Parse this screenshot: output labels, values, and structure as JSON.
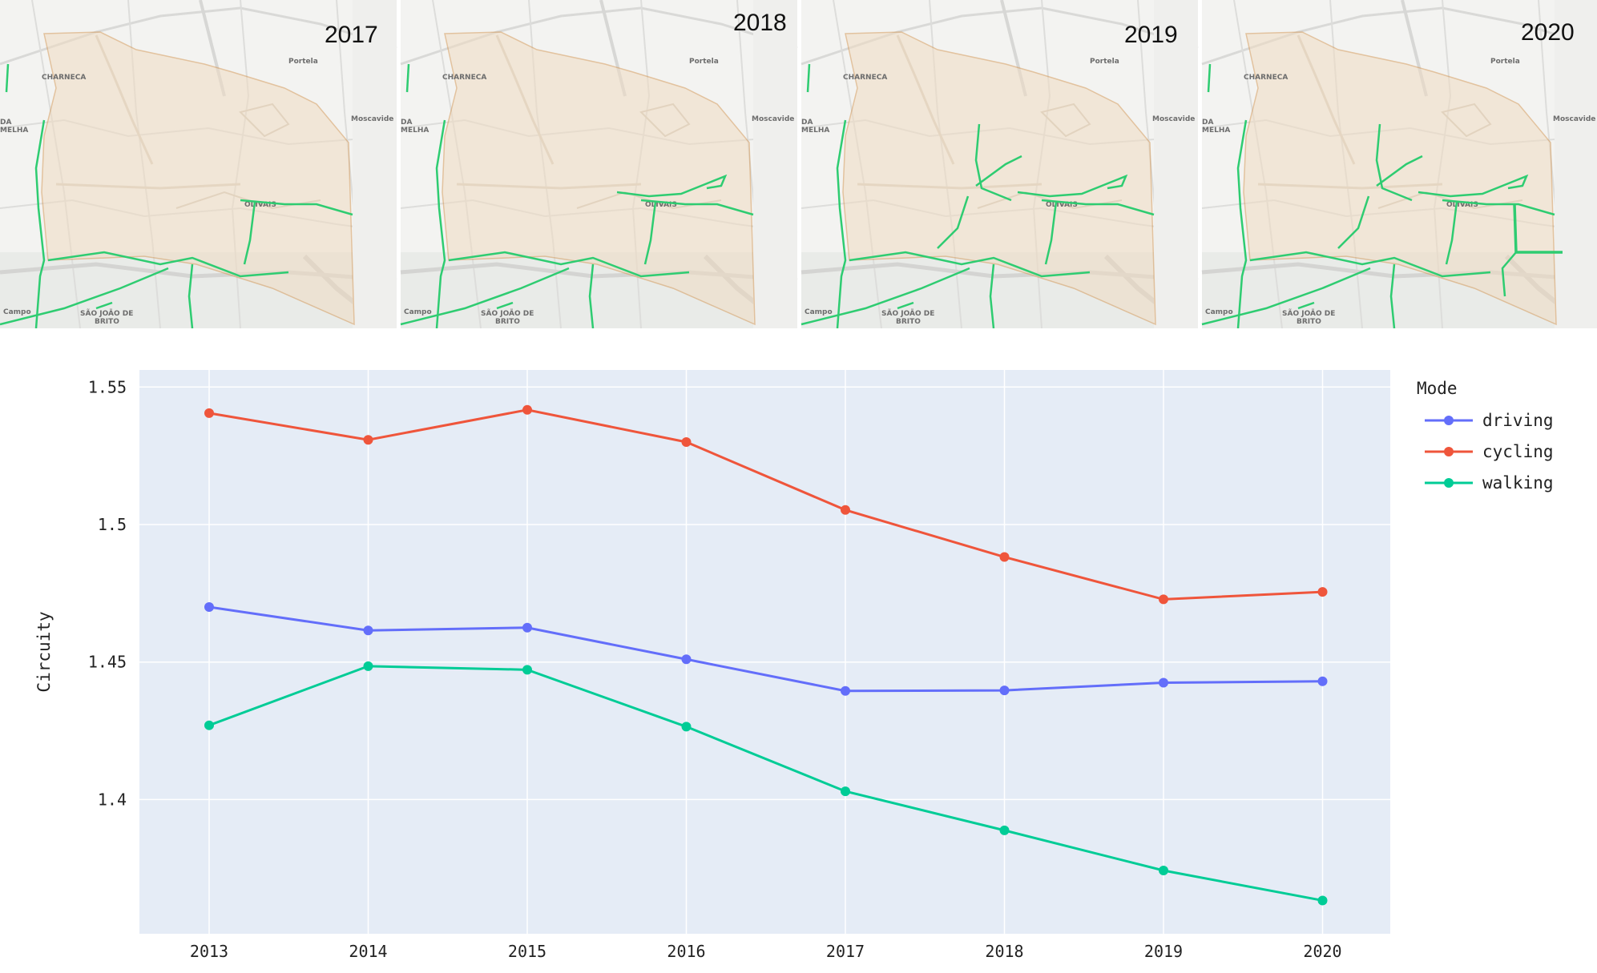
{
  "maps": {
    "years": [
      "2017",
      "2018",
      "2019",
      "2020"
    ],
    "places": [
      "CHARNECA",
      "Portela",
      "Moscavide",
      "OLIVAIS",
      "SÃO JOÃO DE BRITO",
      "DA MELHA",
      "Campo"
    ]
  },
  "chart_data": {
    "type": "line",
    "x": [
      2013,
      2014,
      2015,
      2016,
      2017,
      2018,
      2019,
      2020
    ],
    "series": [
      {
        "name": "driving",
        "color": "#636efa",
        "values": [
          1.47,
          1.4615,
          1.4625,
          1.451,
          1.4395,
          1.4397,
          1.4425,
          1.443
        ]
      },
      {
        "name": "cycling",
        "color": "#ef553b",
        "values": [
          1.5405,
          1.5308,
          1.5417,
          1.53,
          1.5053,
          1.4882,
          1.4728,
          1.4755
        ]
      },
      {
        "name": "walking",
        "color": "#00cc96",
        "values": [
          1.427,
          1.4485,
          1.4472,
          1.4265,
          1.403,
          1.3888,
          1.3742,
          1.3633
        ]
      }
    ],
    "xlabel": "",
    "ylabel": "Circuity",
    "ylim": [
      1.3512,
      1.5562
    ],
    "yticks": [
      "1.4",
      "1.45",
      "1.5",
      "1.55"
    ],
    "yticks_values": [
      1.4,
      1.45,
      1.5,
      1.55
    ],
    "grid": true,
    "legend_title": "Mode",
    "legend_placement": "right"
  }
}
